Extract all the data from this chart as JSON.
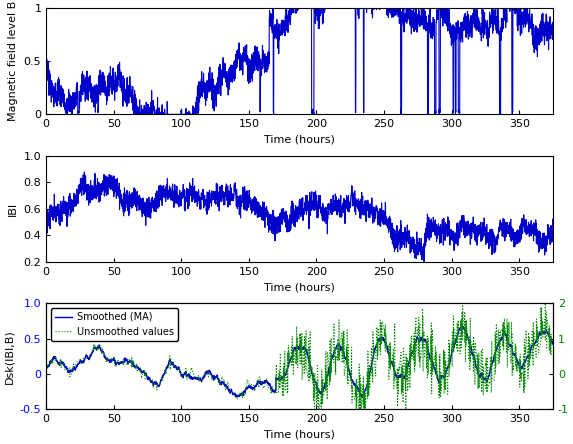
{
  "t_max": 375,
  "n_points": 3000,
  "panel1": {
    "ylabel": "Magnetic field level B",
    "ylim": [
      0,
      1
    ],
    "yticks": [
      0,
      0.5,
      1
    ]
  },
  "panel2": {
    "ylabel": "IBI",
    "ylim": [
      0.2,
      1.0
    ],
    "yticks": [
      0.2,
      0.4,
      0.6,
      0.8,
      1.0
    ]
  },
  "panel3": {
    "ylabel": "Dsk(IBI,B)",
    "ylim_left": [
      -0.5,
      1.0
    ],
    "ylim_right": [
      -1,
      2
    ],
    "yticks_left": [
      -0.5,
      0,
      0.5,
      1.0
    ],
    "yticks_right": [
      -1,
      0,
      1,
      2
    ],
    "legend_smoothed": "Smoothed (MA)",
    "legend_unsmoothed": "Unsmoothed values"
  },
  "xlabel": "Time (hours)",
  "xticks": [
    0,
    50,
    100,
    150,
    200,
    250,
    300,
    350
  ],
  "line_color": "#0000CC",
  "dashed_color": "#008800",
  "linewidth": 0.8,
  "font_size": 9
}
